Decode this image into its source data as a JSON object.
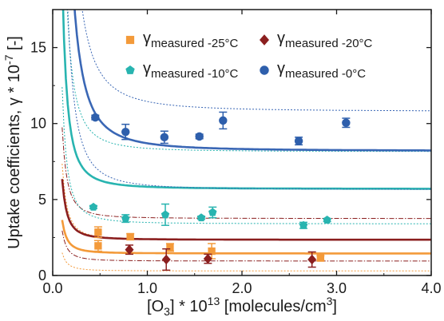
{
  "chart_data": {
    "type": "scatter",
    "xlabel": "[O₃] * 10¹³ [molecules/cm³]",
    "ylabel": "Uptake coefficients, γ * 10⁻⁷ [-]",
    "xlim": [
      0,
      4.0
    ],
    "ylim": [
      0,
      17.5
    ],
    "x_ticks": [
      0,
      1,
      2,
      3,
      4
    ],
    "x_tick_labels": [
      "0.0",
      "1.0",
      "2.0",
      "3.0",
      "4.0"
    ],
    "y_ticks": [
      0,
      5,
      10,
      15
    ],
    "y_tick_labels": [
      "0",
      "5",
      "10",
      "15"
    ],
    "grid": false,
    "legend_position": "top",
    "series": [
      {
        "name": "γmeasured -25°C",
        "symbol": "square",
        "color": "#f39a3a",
        "fit_color": "#f39a3a",
        "fit": {
          "a": 1.45,
          "b": 0.022
        },
        "band": {
          "a_upper": 2.35,
          "b_upper": 0.05,
          "a_lower": 0.3,
          "b_lower": 0.012
        },
        "points": [
          {
            "x": 0.48,
            "y": 1.95,
            "err": 0.35
          },
          {
            "x": 0.48,
            "y": 2.85,
            "err": 0.35
          },
          {
            "x": 0.82,
            "y": 2.55,
            "err": 0.2
          },
          {
            "x": 1.24,
            "y": 1.85,
            "err": 0.25
          },
          {
            "x": 1.68,
            "y": 1.6,
            "err": 0.5
          },
          {
            "x": 2.83,
            "y": 1.15,
            "err": 0.15
          }
        ]
      },
      {
        "name": "γmeasured -20°C",
        "symbol": "diamond",
        "color": "#8b1f1f",
        "fit_color": "#8b1f1f",
        "fit": {
          "a": 2.35,
          "b": 0.04
        },
        "band": {
          "a_upper": 3.75,
          "b_upper": 0.06,
          "a_lower": 0.95,
          "b_lower": 0.02
        },
        "points": [
          {
            "x": 0.81,
            "y": 1.7,
            "err": 0.3
          },
          {
            "x": 1.2,
            "y": 1.05,
            "err": 0.7
          },
          {
            "x": 1.64,
            "y": 1.1,
            "err": 0.3
          },
          {
            "x": 2.74,
            "y": 1.05,
            "err": 0.5
          }
        ]
      },
      {
        "name": "γmeasured -10°C",
        "symbol": "pentagon",
        "color": "#28b4b0",
        "fit_color": "#28b4b0",
        "fit": {
          "a": 5.7,
          "b": 0.14
        },
        "band": {
          "a_upper": 8.15,
          "b_upper": 0.22,
          "a_lower": 3.4,
          "b_lower": 0.09
        },
        "points": [
          {
            "x": 0.43,
            "y": 4.5,
            "err": 0.1
          },
          {
            "x": 0.77,
            "y": 3.75,
            "err": 0.25
          },
          {
            "x": 1.19,
            "y": 4.0,
            "err": 0.7
          },
          {
            "x": 1.57,
            "y": 3.8,
            "err": 0.1
          },
          {
            "x": 1.69,
            "y": 4.15,
            "err": 0.35
          },
          {
            "x": 2.65,
            "y": 3.3,
            "err": 0.2
          },
          {
            "x": 2.9,
            "y": 3.65,
            "err": 0.1
          }
        ]
      },
      {
        "name": "γmeasured -0°C",
        "symbol": "circle",
        "color": "#2e5fac",
        "fit_color": "#3a67b5",
        "fit": {
          "a": 8.2,
          "b": 0.5
        },
        "band": {
          "a_upper": 10.8,
          "b_upper": 0.65,
          "a_lower": 5.65,
          "b_lower": 0.3
        },
        "points": [
          {
            "x": 0.45,
            "y": 10.4,
            "err": 0.15
          },
          {
            "x": 0.77,
            "y": 9.45,
            "err": 0.5
          },
          {
            "x": 1.18,
            "y": 9.1,
            "err": 0.4
          },
          {
            "x": 1.55,
            "y": 9.15,
            "err": 0.15
          },
          {
            "x": 1.8,
            "y": 10.2,
            "err": 0.55
          },
          {
            "x": 2.6,
            "y": 8.85,
            "err": 0.25
          },
          {
            "x": 3.1,
            "y": 10.05,
            "err": 0.3
          }
        ]
      }
    ],
    "legend": [
      {
        "series": 0,
        "main": "γ",
        "sub": "measured -25°C"
      },
      {
        "series": 1,
        "main": "γ",
        "sub": "measured -20°C"
      },
      {
        "series": 2,
        "main": "γ",
        "sub": "measured -10°C"
      },
      {
        "series": 3,
        "main": "γ",
        "sub": "measured -0°C"
      }
    ]
  }
}
